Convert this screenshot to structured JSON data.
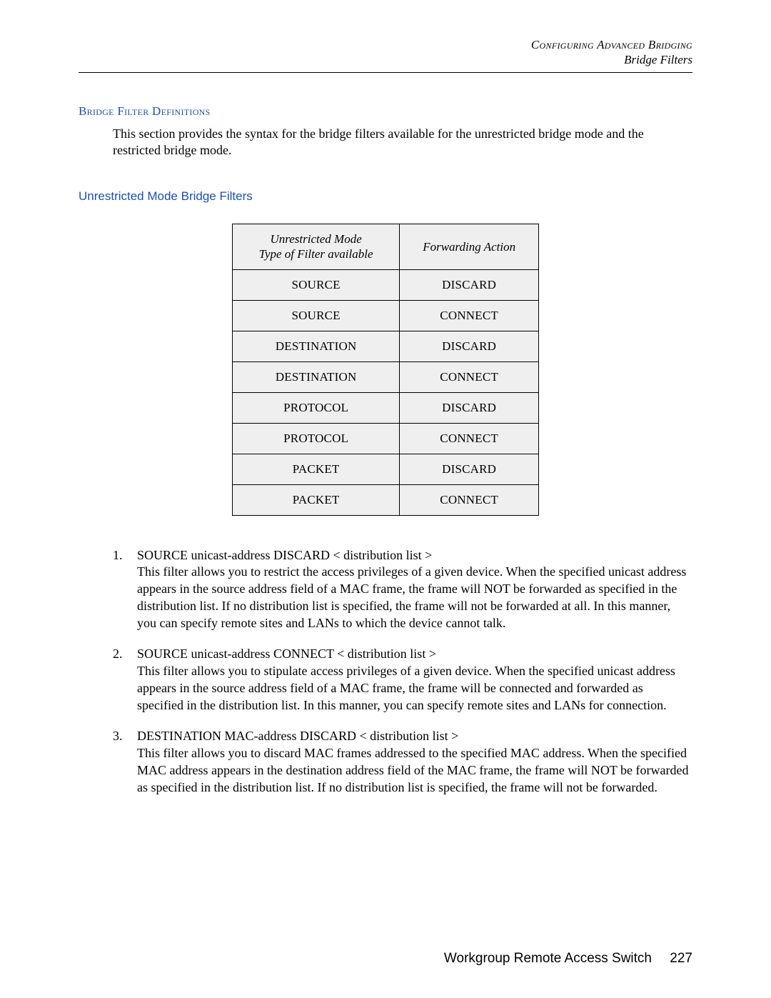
{
  "header": {
    "line1": "Configuring Advanced Bridging",
    "line2": "Bridge Filters"
  },
  "section": {
    "title": "Bridge Filter Definitions",
    "intro": "This section provides the syntax for the bridge filters available for the unrestricted bridge mode and the restricted bridge mode."
  },
  "subsection": {
    "title": "Unrestricted Mode Bridge Filters"
  },
  "table": {
    "columns": [
      "Unrestricted Mode Type of Filter available",
      "Forwarding Action"
    ],
    "col0_line1": "Unrestricted Mode",
    "col0_line2": "Type of Filter available",
    "col1": "Forwarding Action",
    "rows": [
      [
        "SOURCE",
        "DISCARD"
      ],
      [
        "SOURCE",
        "CONNECT"
      ],
      [
        "DESTINATION",
        "DISCARD"
      ],
      [
        "DESTINATION",
        "CONNECT"
      ],
      [
        "PROTOCOL",
        "DISCARD"
      ],
      [
        "PROTOCOL",
        "CONNECT"
      ],
      [
        "PACKET",
        "DISCARD"
      ],
      [
        "PACKET",
        "CONNECT"
      ]
    ],
    "header_bg": "#efefef",
    "cell_bg": "#efefef",
    "border_color": "#000000"
  },
  "definitions": [
    {
      "num": "1.",
      "title": "SOURCE unicast-address DISCARD < distribution list >",
      "desc": "This filter allows you to restrict the access privileges of a given device. When the specified unicast address appears in the source address field of a MAC frame, the frame will NOT be forwarded as specified in the distribution list. If no distribution list is specified, the frame will not be forwarded at all. In this manner, you can specify remote sites and LANs to which the device cannot talk."
    },
    {
      "num": "2.",
      "title": "SOURCE unicast-address CONNECT < distribution list >",
      "desc": "This filter allows you to stipulate access privileges of a given device. When the specified unicast address appears in the source address field of a MAC frame, the frame will be connected and forwarded as specified in the distribution list. In this manner, you can specify remote sites and LANs for connection."
    },
    {
      "num": "3.",
      "title": "DESTINATION MAC-address DISCARD < distribution list >",
      "desc": "This filter allows you to discard MAC frames addressed to the specified MAC address. When the specified MAC address appears in the destination address field of the MAC frame, the frame will NOT be forwarded as specified in the distribution list. If no distribution list is specified, the frame will not be forwarded."
    }
  ],
  "footer": {
    "label": "Workgroup Remote Access Switch",
    "page": "227"
  },
  "colors": {
    "link_blue": "#1b4fb3",
    "text": "#000000",
    "bg": "#ffffff"
  }
}
